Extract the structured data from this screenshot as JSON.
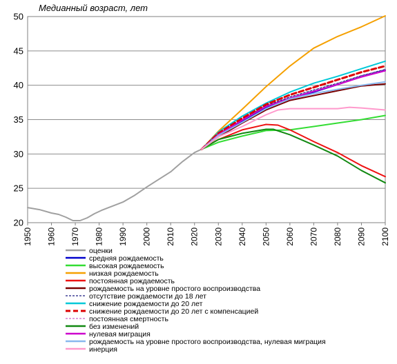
{
  "chart_data": {
    "type": "line",
    "title": "",
    "ylabel": "Медианный возраст, лет",
    "xlabel": "",
    "xlim": [
      1950,
      2100
    ],
    "ylim": [
      20,
      50
    ],
    "x_ticks": [
      1950,
      1960,
      1970,
      1980,
      1990,
      2000,
      2010,
      2020,
      2030,
      2040,
      2050,
      2060,
      2070,
      2080,
      2090,
      2100
    ],
    "y_ticks": [
      20,
      25,
      30,
      35,
      40,
      45,
      50
    ],
    "grid": "horizontal",
    "legend_position": "bottom",
    "series": [
      {
        "name": "оценки",
        "color": "#a0a0a0",
        "dash": "solid",
        "x": [
          1950,
          1955,
          1960,
          1963,
          1966,
          1969,
          1972,
          1975,
          1978,
          1981,
          1984,
          1987,
          1990,
          1995,
          2000,
          2005,
          2010,
          2015,
          2020,
          2023
        ],
        "y": [
          22.2,
          21.9,
          21.4,
          21.2,
          20.8,
          20.3,
          20.3,
          20.7,
          21.3,
          21.8,
          22.2,
          22.6,
          23.0,
          24.0,
          25.2,
          26.3,
          27.4,
          28.9,
          30.2,
          30.7
        ]
      },
      {
        "name": "средняя рождаемость",
        "color": "#0000cc",
        "dash": "solid",
        "x": [
          2023,
          2030,
          2040,
          2050,
          2060,
          2070,
          2080,
          2090,
          2100
        ],
        "y": [
          30.7,
          32.7,
          34.8,
          36.8,
          38.0,
          39.0,
          40.1,
          41.3,
          42.2
        ]
      },
      {
        "name": "высокая рождаемость",
        "color": "#33dd33",
        "dash": "solid",
        "x": [
          2023,
          2030,
          2040,
          2050,
          2060,
          2070,
          2080,
          2090,
          2100
        ],
        "y": [
          30.7,
          31.7,
          32.6,
          33.4,
          33.5,
          34.0,
          34.5,
          35.0,
          35.6
        ]
      },
      {
        "name": "низкая рождаемость",
        "color": "#f5a000",
        "dash": "solid",
        "x": [
          2023,
          2030,
          2040,
          2050,
          2060,
          2070,
          2080,
          2090,
          2100
        ],
        "y": [
          30.7,
          33.3,
          36.5,
          39.8,
          42.8,
          45.4,
          47.1,
          48.5,
          50.1
        ]
      },
      {
        "name": "постоянная рождаемость",
        "color": "#ee1111",
        "dash": "solid",
        "x": [
          2023,
          2030,
          2040,
          2050,
          2055,
          2060,
          2070,
          2080,
          2090,
          2100
        ],
        "y": [
          30.7,
          32.1,
          33.5,
          34.3,
          34.2,
          33.5,
          31.8,
          30.2,
          28.3,
          26.7
        ]
      },
      {
        "name": "рождаемость на уровне простого воспроизводства",
        "color": "#7a0000",
        "dash": "solid",
        "x": [
          2023,
          2030,
          2040,
          2050,
          2060,
          2070,
          2080,
          2090,
          2100
        ],
        "y": [
          30.7,
          32.5,
          34.5,
          36.4,
          37.8,
          38.5,
          39.2,
          39.9,
          40.2
        ]
      },
      {
        "name": "отсутствие рождаемости до 18 лет",
        "color": "#1a1a80",
        "dash": "thin-dash",
        "x": [
          2023,
          2030,
          2040,
          2050,
          2060,
          2070,
          2080,
          2090,
          2100
        ],
        "y": [
          30.7,
          32.9,
          35.0,
          37.0,
          38.3,
          39.3,
          40.3,
          41.4,
          42.3
        ]
      },
      {
        "name": "снижение рождаемости до 20 лет",
        "color": "#00c8d8",
        "dash": "solid",
        "x": [
          2023,
          2030,
          2040,
          2050,
          2060,
          2070,
          2080,
          2090,
          2100
        ],
        "y": [
          30.7,
          33.2,
          35.5,
          37.4,
          39.0,
          40.3,
          41.3,
          42.4,
          43.5
        ]
      },
      {
        "name": "снижение рождаемости до 20 лет с компенсацией",
        "color": "#dd0000",
        "dash": "thick-dash",
        "x": [
          2023,
          2030,
          2040,
          2050,
          2060,
          2070,
          2080,
          2090,
          2100
        ],
        "y": [
          30.7,
          33.0,
          35.2,
          37.2,
          38.6,
          39.7,
          40.8,
          41.9,
          42.8
        ]
      },
      {
        "name": "постоянная смертность",
        "color": "#cc66cc",
        "dash": "thin-dash",
        "x": [
          2023,
          2030,
          2040,
          2050,
          2060,
          2070,
          2080,
          2090,
          2100
        ],
        "y": [
          30.7,
          32.8,
          34.9,
          36.9,
          38.1,
          39.1,
          40.2,
          41.3,
          42.2
        ]
      },
      {
        "name": "без изменений",
        "color": "#118811",
        "dash": "solid",
        "x": [
          2023,
          2030,
          2040,
          2050,
          2053,
          2060,
          2070,
          2080,
          2090,
          2100
        ],
        "y": [
          30.7,
          32.1,
          33.0,
          33.6,
          33.6,
          32.8,
          31.3,
          29.7,
          27.6,
          25.8
        ]
      },
      {
        "name": "нулевая миграция",
        "color": "#cc00cc",
        "dash": "solid",
        "x": [
          2023,
          2030,
          2040,
          2050,
          2060,
          2070,
          2080,
          2090,
          2100
        ],
        "y": [
          30.7,
          32.8,
          34.9,
          36.9,
          38.1,
          39.1,
          40.1,
          41.2,
          42.1
        ]
      },
      {
        "name": "рождаемость на уровне простого воспроизводства, нулевая миграция",
        "color": "#88b8ee",
        "dash": "solid",
        "x": [
          2023,
          2030,
          2040,
          2050,
          2060,
          2070,
          2080,
          2090,
          2100
        ],
        "y": [
          30.7,
          32.7,
          34.6,
          36.6,
          38.0,
          38.8,
          39.4,
          40.0,
          40.5
        ]
      },
      {
        "name": "инерция",
        "color": "#ff99cc",
        "dash": "solid",
        "x": [
          2023,
          2030,
          2040,
          2050,
          2055,
          2060,
          2070,
          2080,
          2085,
          2090,
          2100
        ],
        "y": [
          30.7,
          32.5,
          34.0,
          35.7,
          36.4,
          36.6,
          36.6,
          36.6,
          36.8,
          36.7,
          36.4
        ]
      }
    ]
  }
}
